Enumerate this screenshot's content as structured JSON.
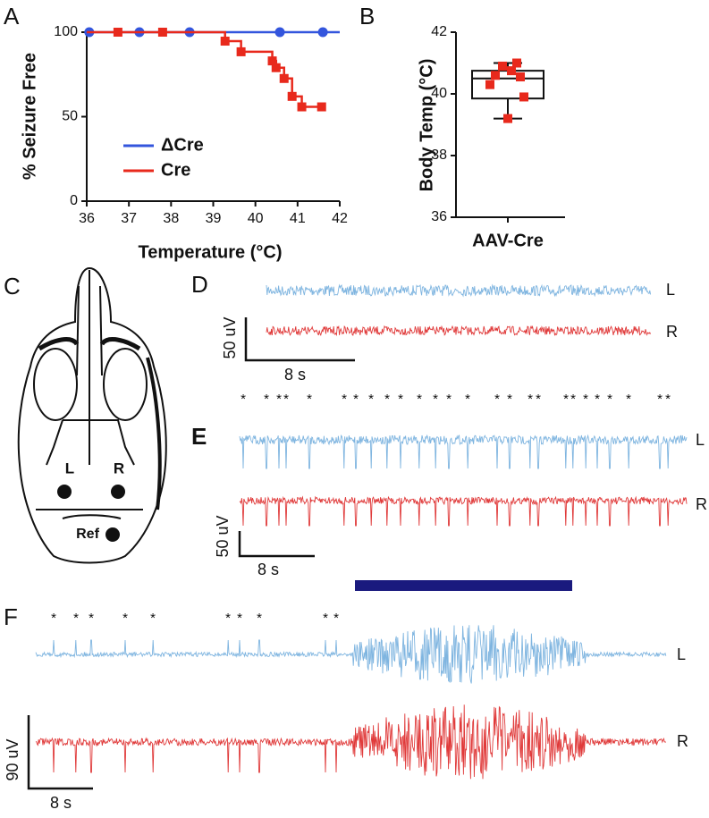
{
  "chart_data": [
    {
      "type": "line",
      "panel": "A",
      "xlabel": "Temperature (°C)",
      "ylabel": "% Seizure Free",
      "xlim": [
        36,
        42
      ],
      "xticks": [
        36,
        37,
        38,
        39,
        40,
        41,
        42
      ],
      "ylim": [
        0,
        100
      ],
      "yticks": [
        0,
        50,
        100
      ],
      "legend": "center-left",
      "series": [
        {
          "name": "ΔCre",
          "color": "#3355dd",
          "marker": "circle",
          "step": false,
          "x": [
            36.06,
            37.25,
            38.44,
            40.58,
            41.6
          ],
          "values": [
            100,
            100,
            100,
            100,
            100
          ]
        },
        {
          "name": "Cre",
          "color": "#e8291c",
          "marker": "square",
          "step": true,
          "x": [
            36.74,
            37.8,
            39.28,
            39.66,
            40.4,
            40.49,
            40.68,
            40.87,
            41.1,
            41.57
          ],
          "values": [
            100,
            100,
            94.7,
            88.4,
            83,
            79,
            72.6,
            62,
            55.8,
            55.8
          ]
        }
      ]
    },
    {
      "type": "box",
      "panel": "B",
      "ylabel": "Body Temp (°C)",
      "categories": [
        "AAV-Cre"
      ],
      "ylim": [
        36,
        42
      ],
      "yticks": [
        36,
        38,
        40,
        42
      ],
      "color": "#e8291c",
      "whisker_low": 39.2,
      "q1": 39.85,
      "median": 40.5,
      "q3": 40.75,
      "whisker_high": 41.0,
      "points": [
        41.0,
        40.9,
        40.75,
        40.6,
        40.55,
        40.3,
        39.9,
        39.2
      ]
    }
  ],
  "skull": {
    "panel": "C",
    "left": "L",
    "right": "R",
    "ref": "Ref"
  },
  "traces": [
    {
      "panel": "D",
      "scale_v": "50 uV",
      "scale_t": "8 s",
      "left": "L",
      "right": "R",
      "asterisks": []
    },
    {
      "panel": "E",
      "scale_v": "50 uV",
      "scale_t": "8 s",
      "left": "L",
      "right": "R",
      "asterisks": [
        "*",
        "*",
        "*",
        "*",
        "*",
        "*",
        "*",
        "*",
        "*",
        "*",
        "*",
        "*",
        "*",
        "*",
        "*",
        "*",
        "*",
        "*",
        "*",
        "*",
        "*",
        "*",
        "*",
        "*",
        "*",
        "*"
      ]
    },
    {
      "panel": "F",
      "scale_v": "90 uV",
      "scale_t": "8 s",
      "left": "L",
      "right": "R",
      "asterisks": [
        "*",
        "*",
        "*",
        "*",
        "*",
        "*",
        "*",
        "*",
        "*",
        "*"
      ]
    }
  ]
}
